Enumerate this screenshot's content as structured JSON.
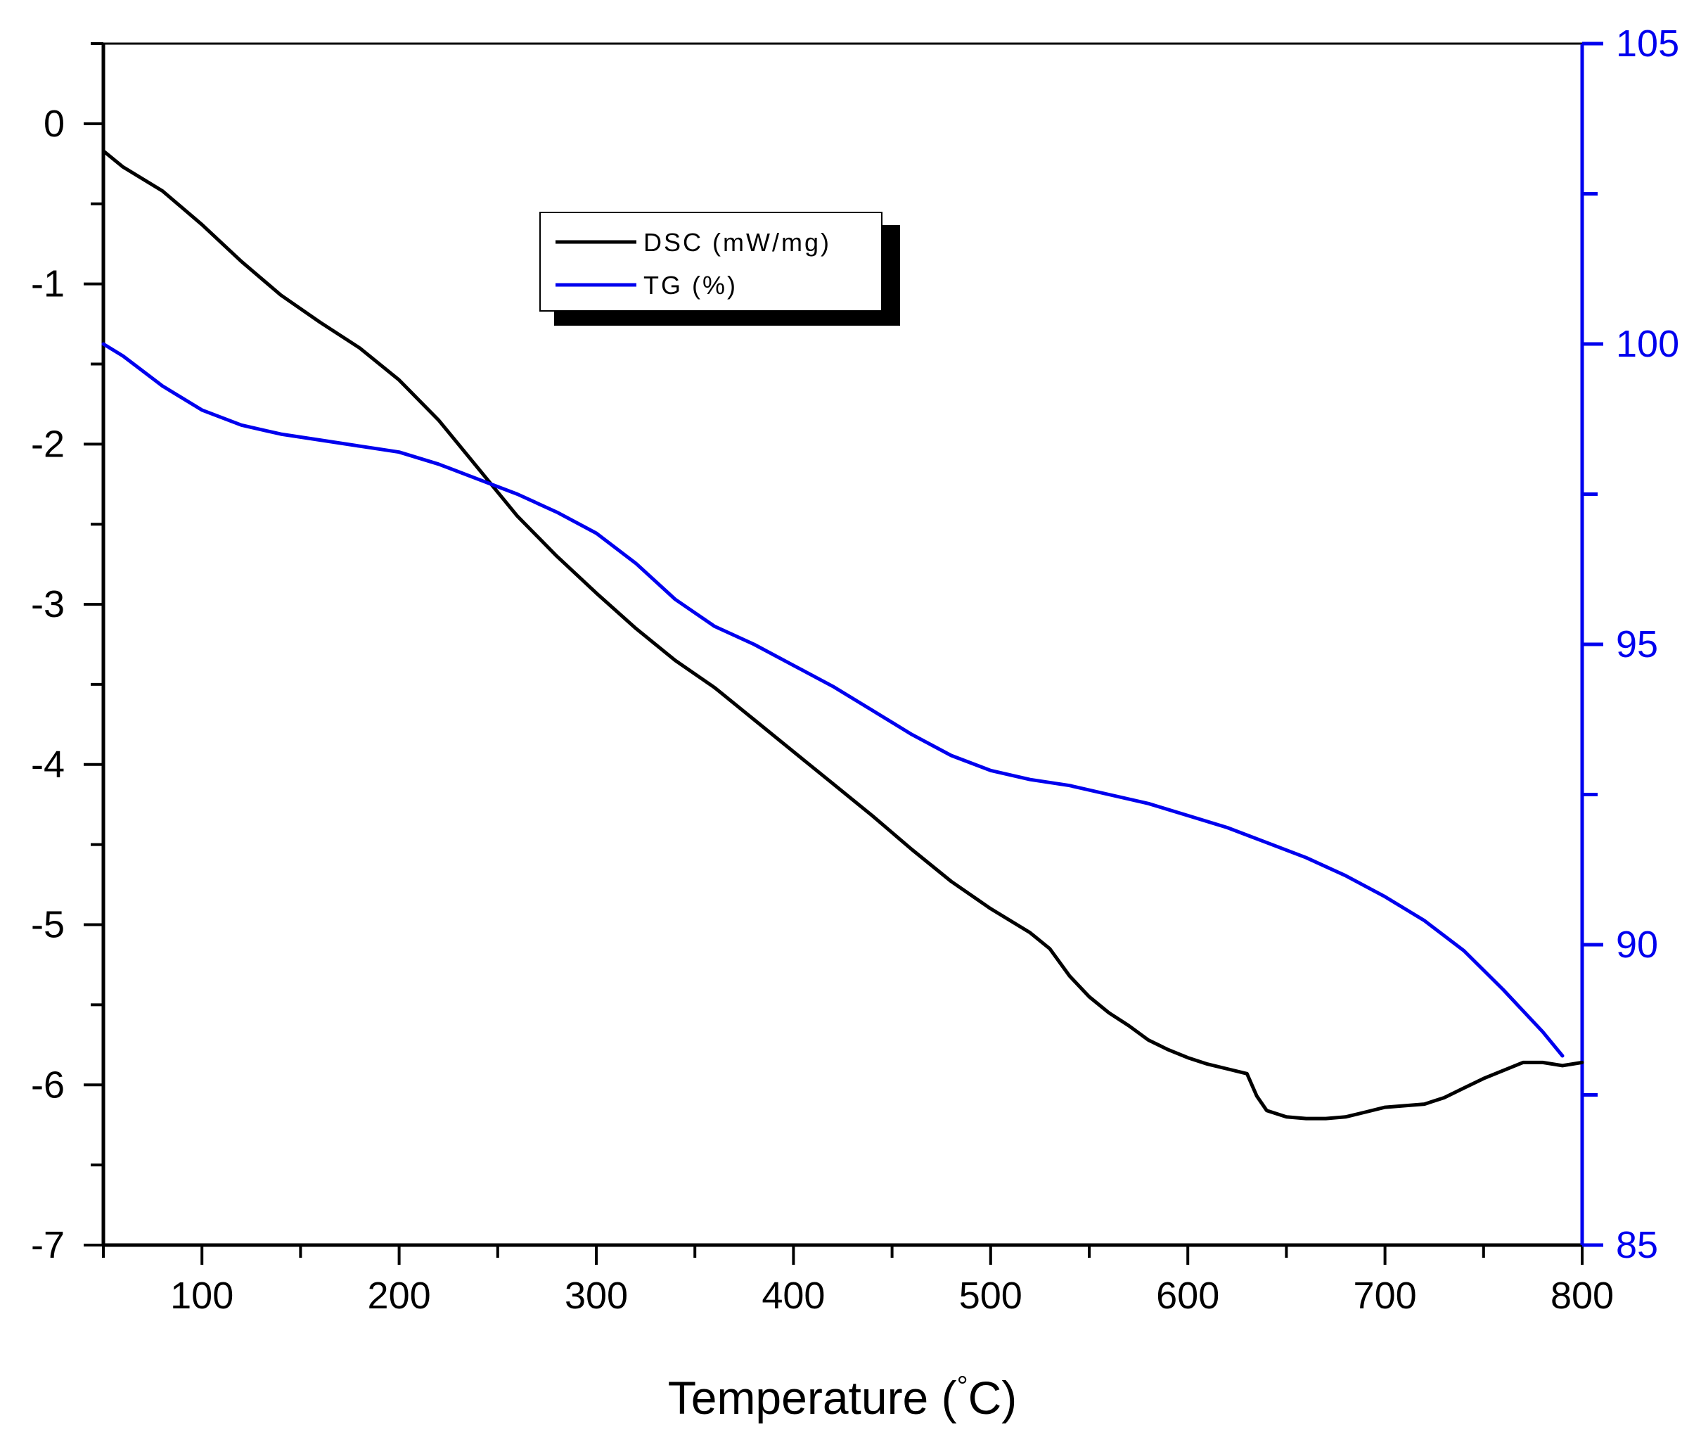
{
  "chart_data": {
    "type": "line",
    "title": "",
    "xlabel": "Temperature (°C)",
    "xlabel_main": "Temperature (",
    "xlabel_degree": "°",
    "xlabel_unit": "C)",
    "xlim": [
      50,
      800
    ],
    "x_ticks": [
      100,
      200,
      300,
      400,
      500,
      600,
      700,
      800
    ],
    "y_left": {
      "label": "",
      "lim": [
        -7,
        0.5
      ],
      "ticks": [
        0,
        -1,
        -2,
        -3,
        -4,
        -5,
        -6,
        -7
      ],
      "tick_labels": [
        "0",
        "-1",
        "-2",
        "-3",
        "-4",
        "-5",
        "-6",
        "-7"
      ],
      "color": "#000000"
    },
    "y_right": {
      "label": "",
      "lim": [
        85,
        105
      ],
      "ticks": [
        85,
        90,
        95,
        100,
        105
      ],
      "color": "#0000ee"
    },
    "grid": false,
    "legend_position": "upper-center",
    "series": [
      {
        "name": "DSC (mW/mg)",
        "axis": "left",
        "color": "#000000",
        "x": [
          50,
          60,
          80,
          100,
          120,
          140,
          160,
          180,
          200,
          220,
          240,
          260,
          280,
          300,
          320,
          340,
          360,
          380,
          400,
          420,
          440,
          460,
          480,
          500,
          520,
          530,
          540,
          550,
          560,
          570,
          580,
          590,
          600,
          610,
          620,
          630,
          635,
          640,
          650,
          660,
          670,
          680,
          690,
          700,
          710,
          720,
          730,
          740,
          750,
          760,
          770,
          780,
          790,
          800
        ],
        "values": [
          -0.17,
          -0.27,
          -0.42,
          -0.63,
          -0.86,
          -1.07,
          -1.24,
          -1.4,
          -1.6,
          -1.85,
          -2.15,
          -2.45,
          -2.7,
          -2.93,
          -3.15,
          -3.35,
          -3.52,
          -3.72,
          -3.92,
          -4.12,
          -4.32,
          -4.53,
          -4.73,
          -4.9,
          -5.05,
          -5.15,
          -5.32,
          -5.45,
          -5.55,
          -5.63,
          -5.72,
          -5.78,
          -5.83,
          -5.87,
          -5.9,
          -5.93,
          -6.07,
          -6.16,
          -6.2,
          -6.21,
          -6.21,
          -6.2,
          -6.17,
          -6.14,
          -6.13,
          -6.12,
          -6.08,
          -6.02,
          -5.96,
          -5.91,
          -5.86,
          -5.86,
          -5.88,
          -5.86
        ]
      },
      {
        "name": "TG (%)",
        "axis": "right",
        "color": "#0000ee",
        "x": [
          50,
          60,
          80,
          100,
          120,
          140,
          160,
          180,
          200,
          220,
          240,
          260,
          280,
          300,
          320,
          340,
          360,
          380,
          400,
          420,
          440,
          460,
          480,
          500,
          520,
          540,
          560,
          580,
          600,
          620,
          640,
          660,
          680,
          700,
          720,
          740,
          760,
          780,
          790
        ],
        "values": [
          100.0,
          99.8,
          99.3,
          98.9,
          98.65,
          98.5,
          98.4,
          98.3,
          98.2,
          98.0,
          97.75,
          97.5,
          97.2,
          96.85,
          96.35,
          95.75,
          95.3,
          95.0,
          94.65,
          94.3,
          93.9,
          93.5,
          93.15,
          92.9,
          92.75,
          92.65,
          92.5,
          92.35,
          92.15,
          91.95,
          91.7,
          91.45,
          91.15,
          90.8,
          90.4,
          89.9,
          89.25,
          88.55,
          88.15
        ]
      }
    ]
  }
}
